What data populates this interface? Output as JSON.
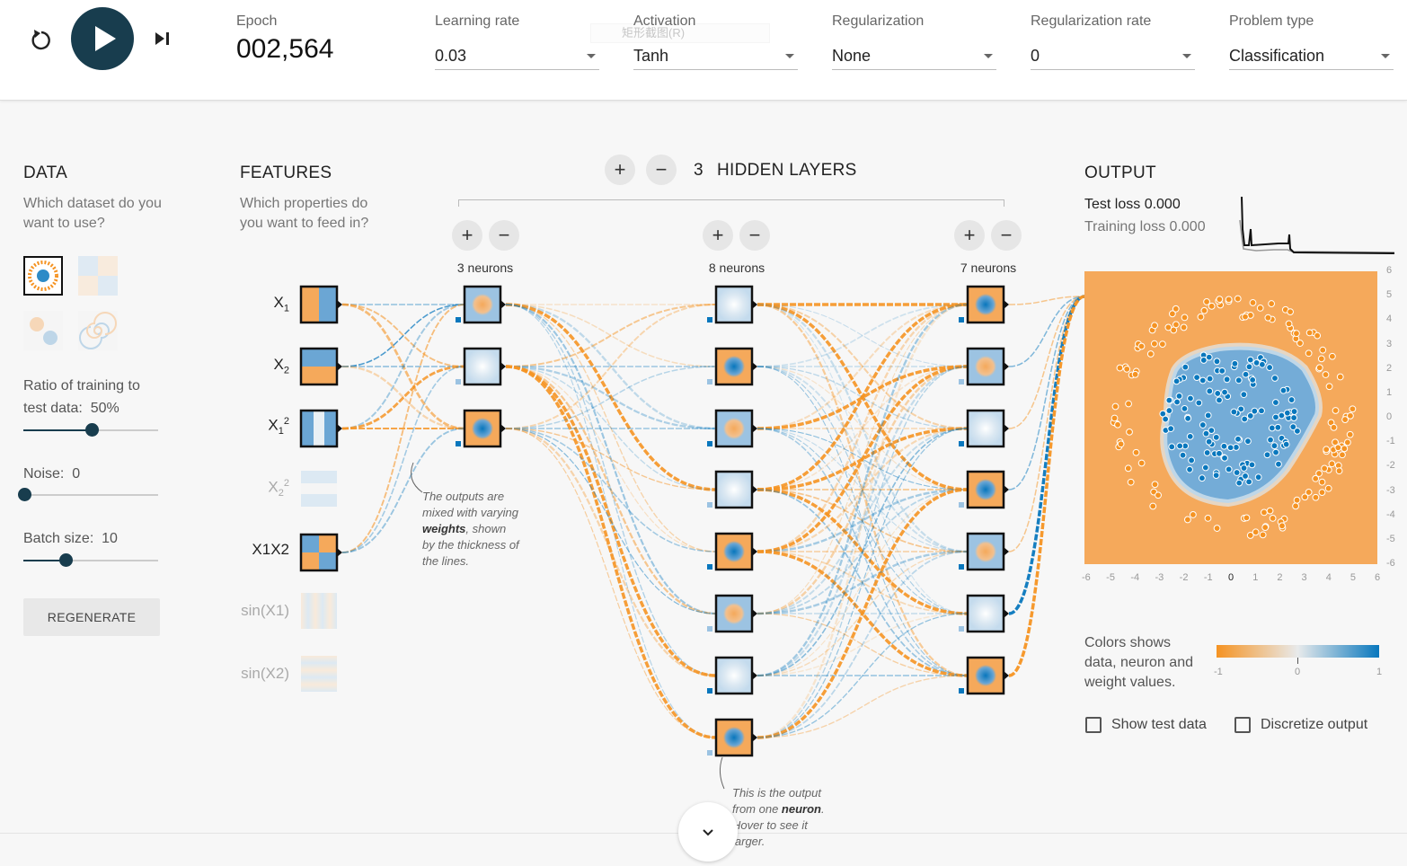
{
  "controls": {
    "epoch_label": "Epoch",
    "epoch_value": "002,564",
    "learning_rate": {
      "label": "Learning rate",
      "value": "0.03"
    },
    "activation": {
      "label": "Activation",
      "value": "Tanh"
    },
    "regularization": {
      "label": "Regularization",
      "value": "None"
    },
    "regularization_rate": {
      "label": "Regularization rate",
      "value": "0"
    },
    "problem_type": {
      "label": "Problem type",
      "value": "Classification"
    },
    "overlay_text": "矩形截图(R)"
  },
  "data_section": {
    "title": "DATA",
    "subtitle": "Which dataset do you want to use?",
    "ratio_label": "Ratio of training to",
    "ratio_label2": "test data:",
    "ratio_value": "50%",
    "ratio_level": 0.5,
    "noise_label": "Noise:",
    "noise_value": "0",
    "noise_level": 0,
    "batch_label": "Batch size:",
    "batch_value": "10",
    "batch_level": 0.3,
    "regenerate_label": "REGENERATE"
  },
  "features_section": {
    "title": "FEATURES",
    "subtitle": "Which properties do you want to feed in?",
    "features": [
      {
        "base": "X",
        "sub": "1",
        "sup": "",
        "active": true
      },
      {
        "base": "X",
        "sub": "2",
        "sup": "",
        "active": true
      },
      {
        "base": "X",
        "sub": "1",
        "sup": "2",
        "active": true
      },
      {
        "base": "X",
        "sub": "2",
        "sup": "2",
        "active": false
      },
      {
        "base": "X1X2",
        "sub": "",
        "sup": "",
        "active": true
      },
      {
        "base": "sin(X1)",
        "sub": "",
        "sup": "",
        "active": false
      },
      {
        "base": "sin(X2)",
        "sub": "",
        "sup": "",
        "active": false
      }
    ]
  },
  "network": {
    "hidden_layers_count": "3",
    "hidden_layers_label": "HIDDEN LAYERS",
    "layers": [
      {
        "neurons_label": "3 neurons",
        "count": 3
      },
      {
        "neurons_label": "8 neurons",
        "count": 8
      },
      {
        "neurons_label": "7 neurons",
        "count": 7
      }
    ],
    "note_weights_1": "The outputs are",
    "note_weights_2": "mixed with varying",
    "note_weights_bold": "weights",
    "note_weights_3": ", shown",
    "note_weights_4": "by the thickness of",
    "note_weights_5": "the lines.",
    "note_neuron_1": "This is the output",
    "note_neuron_2a": "from one ",
    "note_neuron_bold": "neuron",
    "note_neuron_2b": ".",
    "note_neuron_3": "Hover to see it",
    "note_neuron_4": "larger."
  },
  "output_section": {
    "title": "OUTPUT",
    "test_loss": "Test loss 0.000",
    "training_loss": "Training loss 0.000",
    "y_ticks": [
      "6",
      "5",
      "4",
      "3",
      "2",
      "1",
      "0",
      "-1",
      "-2",
      "-3",
      "-4",
      "-5",
      "-6"
    ],
    "x_ticks": [
      "-6",
      "-5",
      "-4",
      "-3",
      "-2",
      "-1",
      "0",
      "1",
      "2",
      "3",
      "4",
      "5",
      "6"
    ],
    "color_legend_1": "Colors shows",
    "color_legend_2": "data, neuron and",
    "color_legend_3": "weight values.",
    "scale_min": "-1",
    "scale_mid": "0",
    "scale_max": "1",
    "show_test_data_label": "Show test data",
    "discretize_label": "Discretize output"
  },
  "colors": {
    "orange": "#f59322",
    "blue": "#0877bd",
    "dark": "#183d4e"
  },
  "icons": [
    "reset-icon",
    "play-icon",
    "step-icon",
    "add-icon",
    "remove-icon",
    "chevron-down-icon"
  ]
}
